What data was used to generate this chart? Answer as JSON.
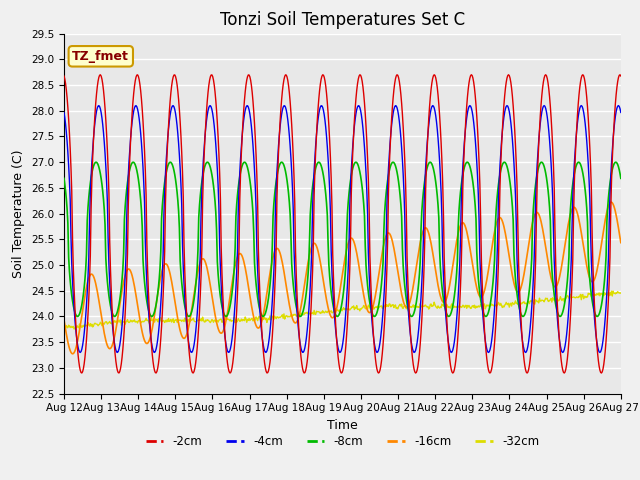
{
  "title": "Tonzi Soil Temperatures Set C",
  "xlabel": "Time",
  "ylabel": "Soil Temperature (C)",
  "ylim": [
    22.5,
    29.5
  ],
  "x_tick_labels": [
    "Aug 12",
    "Aug 13",
    "Aug 14",
    "Aug 15",
    "Aug 16",
    "Aug 17",
    "Aug 18",
    "Aug 19",
    "Aug 20",
    "Aug 21",
    "Aug 22",
    "Aug 23",
    "Aug 24",
    "Aug 25",
    "Aug 26",
    "Aug 27"
  ],
  "annotation_text": "TZ_fmet",
  "annotation_bg": "#ffffcc",
  "annotation_border": "#cc9900",
  "series": {
    "2cm": {
      "color": "#dd0000",
      "label": "-2cm"
    },
    "4cm": {
      "color": "#0000ee",
      "label": "-4cm"
    },
    "8cm": {
      "color": "#00bb00",
      "label": "-8cm"
    },
    "16cm": {
      "color": "#ff8800",
      "label": "-16cm"
    },
    "32cm": {
      "color": "#dddd00",
      "label": "-32cm"
    }
  },
  "bg_color": "#e8e8e8",
  "grid_color": "#ffffff",
  "title_fontsize": 12,
  "label_fontsize": 9,
  "tick_fontsize": 7.5
}
